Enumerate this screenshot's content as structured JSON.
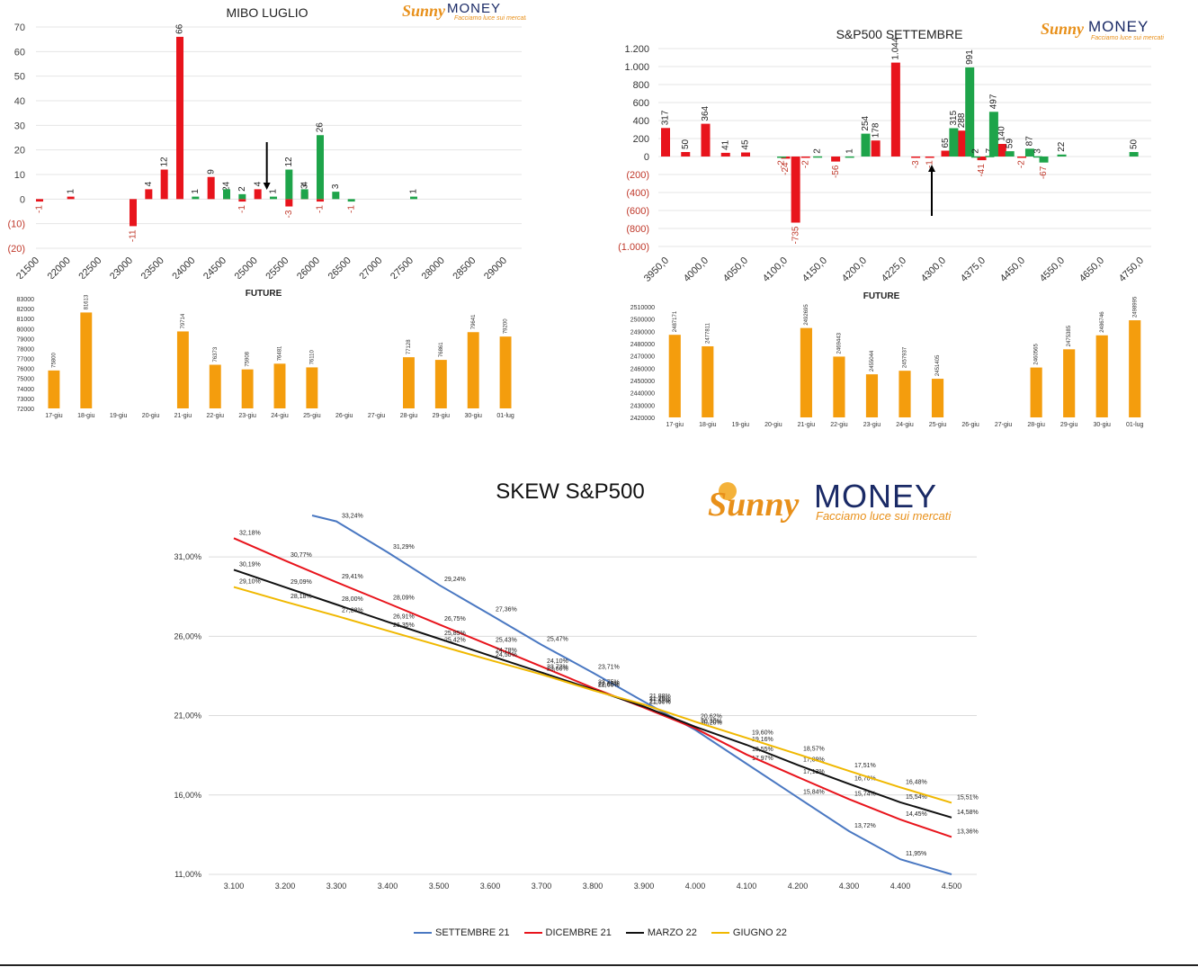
{
  "logo": {
    "sunny": "Sunny",
    "money": "MONEY",
    "tagline": "Facciamo luce sui mercati"
  },
  "chart_data": [
    {
      "id": "mibo",
      "type": "bar",
      "title": "MIBO LUGLIO",
      "categories": [
        "21500",
        "22000",
        "22500",
        "23000",
        "23500",
        "24000",
        "24500",
        "25000",
        "25500",
        "26000",
        "26500",
        "27000",
        "27500",
        "28000",
        "28500",
        "29000"
      ],
      "ylim": [
        -20,
        70
      ],
      "yticks": [
        70,
        60,
        50,
        40,
        30,
        20,
        10,
        0,
        -10,
        -20
      ],
      "ytick_labels": [
        "70",
        "60",
        "50",
        "40",
        "30",
        "20",
        "10",
        "0",
        "(10)",
        "(20)"
      ],
      "series": [
        {
          "color": "#e8141c",
          "points": [
            {
              "x": 21500,
              "y": -1,
              "label": "-1"
            },
            {
              "x": 22000,
              "y": 1,
              "label": "1"
            },
            {
              "x": 23000,
              "y": -11,
              "label": "-11"
            },
            {
              "x": 23250,
              "y": 4,
              "label": "4"
            },
            {
              "x": 23500,
              "y": 12,
              "label": "12"
            },
            {
              "x": 23750,
              "y": 66,
              "label": "66"
            },
            {
              "x": 24250,
              "y": 9,
              "label": "9"
            },
            {
              "x": 24500,
              "y": 2,
              "label": "2"
            },
            {
              "x": 24750,
              "y": -1,
              "label": "-1"
            },
            {
              "x": 25000,
              "y": 4,
              "label": "4"
            },
            {
              "x": 25500,
              "y": -3,
              "label": "-3"
            },
            {
              "x": 25750,
              "y": 3,
              "label": "3"
            },
            {
              "x": 26000,
              "y": -1,
              "label": "-1"
            }
          ]
        },
        {
          "color": "#1ea44a",
          "points": [
            {
              "x": 24000,
              "y": 1,
              "label": "1"
            },
            {
              "x": 24500,
              "y": 4,
              "label": "4"
            },
            {
              "x": 24750,
              "y": 2,
              "label": "2"
            },
            {
              "x": 25250,
              "y": 1,
              "label": "1"
            },
            {
              "x": 25500,
              "y": 12,
              "label": "12"
            },
            {
              "x": 25750,
              "y": 4,
              "label": "4"
            },
            {
              "x": 26000,
              "y": 26,
              "label": "26"
            },
            {
              "x": 26250,
              "y": 3,
              "label": "3"
            },
            {
              "x": 26500,
              "y": -1,
              "label": "-1"
            },
            {
              "x": 27500,
              "y": 1,
              "label": "1"
            }
          ]
        }
      ],
      "arrow_x": 25000
    },
    {
      "id": "mibo-future",
      "type": "bar",
      "title": "FUTURE",
      "categories": [
        "17-giu",
        "18-giu",
        "19-giu",
        "20-giu",
        "21-giu",
        "22-giu",
        "23-giu",
        "24-giu",
        "25-giu",
        "26-giu",
        "27-giu",
        "28-giu",
        "29-giu",
        "30-giu",
        "01-lug"
      ],
      "values": [
        75800,
        81613,
        null,
        null,
        79714,
        76373,
        75908,
        76481,
        76110,
        null,
        null,
        77128,
        76861,
        79641,
        79200
      ],
      "ylim": [
        72000,
        83000
      ],
      "yticks": [
        83000,
        82000,
        81000,
        80000,
        79000,
        78000,
        77000,
        76000,
        75000,
        74000,
        73000,
        72000
      ],
      "color": "#f49d0d"
    },
    {
      "id": "spx",
      "type": "bar",
      "title": "S&P500 SETTEMBRE",
      "categories": [
        "3950,0",
        "4000,0",
        "4050,0",
        "4100,0",
        "4150,0",
        "4200,0",
        "4225,0",
        "4300,0",
        "4375,0",
        "4450,0",
        "4550,0",
        "4650,0",
        "4750,0"
      ],
      "ylim": [
        -1000,
        1200
      ],
      "yticks": [
        1200,
        1000,
        800,
        600,
        400,
        200,
        0,
        -200,
        -400,
        -600,
        -800,
        -1000
      ],
      "ytick_labels": [
        "1.200",
        "1.000",
        "800",
        "600",
        "400",
        "200",
        "0",
        "(200)",
        "(400)",
        "(600)",
        "(800)",
        "(1.000)"
      ],
      "series": [
        {
          "color": "#e8141c",
          "points": [
            {
              "slot": 0,
              "y": 317,
              "label": "317"
            },
            {
              "slot": 1,
              "y": 50,
              "label": "50"
            },
            {
              "slot": 2,
              "y": 364,
              "label": "364"
            },
            {
              "slot": 3,
              "y": 41,
              "label": "41"
            },
            {
              "slot": 4,
              "y": 45,
              "label": "45"
            },
            {
              "slot": 6,
              "y": -24,
              "label": "-24"
            },
            {
              "slot": 6.5,
              "y": -735,
              "label": "-735"
            },
            {
              "slot": 7,
              "y": -2,
              "label": "-2"
            },
            {
              "slot": 8.5,
              "y": -56,
              "label": "-56"
            },
            {
              "slot": 10.5,
              "y": 178,
              "label": "178"
            },
            {
              "slot": 11.5,
              "y": 1044,
              "label": "1.044"
            },
            {
              "slot": 12.5,
              "y": -3,
              "label": "-3"
            },
            {
              "slot": 13.2,
              "y": -1,
              "label": "-1"
            },
            {
              "slot": 14,
              "y": 65,
              "label": "65"
            },
            {
              "slot": 14.8,
              "y": 288,
              "label": "288"
            },
            {
              "slot": 15.8,
              "y": -41,
              "label": "-41"
            },
            {
              "slot": 16.8,
              "y": 140,
              "label": "140"
            },
            {
              "slot": 17.8,
              "y": -2,
              "label": "-2"
            }
          ]
        },
        {
          "color": "#1ea44a",
          "points": [
            {
              "slot": 5.8,
              "y": -2,
              "label": "-2"
            },
            {
              "slot": 7.6,
              "y": 2,
              "label": "2"
            },
            {
              "slot": 9.2,
              "y": 1,
              "label": "1"
            },
            {
              "slot": 10,
              "y": 254,
              "label": "254"
            },
            {
              "slot": 14.4,
              "y": 315,
              "label": "315"
            },
            {
              "slot": 15.2,
              "y": 991,
              "label": "991"
            },
            {
              "slot": 15.5,
              "y": 2,
              "label": "2"
            },
            {
              "slot": 16.2,
              "y": 7,
              "label": "7"
            },
            {
              "slot": 16.4,
              "y": 497,
              "label": "497"
            },
            {
              "slot": 17.2,
              "y": 59,
              "label": "59"
            },
            {
              "slot": 18.2,
              "y": 87,
              "label": "87"
            },
            {
              "slot": 18.6,
              "y": 3,
              "label": "3"
            },
            {
              "slot": 18.9,
              "y": -67,
              "label": "-67"
            },
            {
              "slot": 19.8,
              "y": 22,
              "label": "22"
            },
            {
              "slot": 23.4,
              "y": 50,
              "label": "50"
            }
          ]
        }
      ]
    },
    {
      "id": "spx-future",
      "type": "bar",
      "title": "FUTURE",
      "categories": [
        "17-giu",
        "18-giu",
        "19-giu",
        "20-giu",
        "21-giu",
        "22-giu",
        "23-giu",
        "24-giu",
        "25-giu",
        "26-giu",
        "27-giu",
        "28-giu",
        "29-giu",
        "30-giu",
        "01-lug"
      ],
      "values": [
        2487171,
        2477811,
        null,
        null,
        2492695,
        2469443,
        2455044,
        2457937,
        2451405,
        null,
        null,
        2460565,
        2475385,
        2486746,
        2498995
      ],
      "ylim": [
        2420000,
        2510000
      ],
      "yticks": [
        2510000,
        2500000,
        2490000,
        2480000,
        2470000,
        2460000,
        2450000,
        2440000,
        2430000,
        2420000
      ],
      "color": "#f49d0d"
    },
    {
      "id": "skew",
      "type": "line",
      "title": "SKEW S&P500",
      "x": [
        3100,
        3200,
        3300,
        3400,
        3500,
        3600,
        3700,
        3800,
        3900,
        4000,
        4100,
        4200,
        4300,
        4400,
        4500
      ],
      "xtick_labels": [
        "3.100",
        "3.200",
        "3.300",
        "3.400",
        "3.500",
        "3.600",
        "3.700",
        "3.800",
        "3.900",
        "4.000",
        "4.100",
        "4.200",
        "4.300",
        "4.400",
        "4.500"
      ],
      "ylim": [
        11,
        33.5
      ],
      "yticks": [
        11,
        16,
        21,
        26,
        31
      ],
      "ytick_labels": [
        "11,00%",
        "16,00%",
        "21,00%",
        "26,00%",
        "31,00%"
      ],
      "series": [
        {
          "name": "SETTEMBRE 21",
          "color": "#4a78c2",
          "y": [
            null,
            null,
            33.24,
            31.29,
            29.24,
            27.36,
            25.47,
            23.71,
            21.88,
            20.1,
            17.97,
            15.84,
            13.72,
            11.95,
            11.0
          ],
          "labels": [
            "",
            "",
            "33,24%",
            "31,29%",
            "29,24%",
            "27,36%",
            "25,47%",
            "23,71%",
            "21,88%",
            "",
            "17,97%",
            "15,84%",
            "13,72%",
            "11,95%",
            ""
          ]
        },
        {
          "name": "DICEMBRE 21",
          "color": "#e8141c",
          "y": [
            32.18,
            30.77,
            29.41,
            28.09,
            26.75,
            25.43,
            24.1,
            22.75,
            21.5,
            20.2,
            18.55,
            17.13,
            15.74,
            14.45,
            13.36
          ],
          "labels": [
            "32,18%",
            "30,77%",
            "29,41%",
            "28,09%",
            "26,75%",
            "25,43%",
            "24,10%",
            "22,75%",
            "21,50%",
            "20,20%",
            "18,55%",
            "17,13%",
            "15,74%",
            "14,45%",
            "13,36%"
          ]
        },
        {
          "name": "MARZO 22",
          "color": "#111111",
          "y": [
            30.19,
            29.09,
            28.0,
            26.91,
            25.85,
            24.78,
            23.72,
            22.66,
            21.57,
            20.3,
            19.16,
            17.89,
            16.7,
            15.54,
            14.58
          ],
          "labels": [
            "30,19%",
            "29,09%",
            "28,00%",
            "26,91%",
            "25,85%",
            "24,78%",
            "23,72%",
            "22,66%",
            "21,57%",
            "20,30%",
            "19,16%",
            "17,89%",
            "16,70%",
            "15,54%",
            "14,58%"
          ]
        },
        {
          "name": "GIUGNO 22",
          "color": "#f0b800",
          "y": [
            29.1,
            28.18,
            27.28,
            26.35,
            25.42,
            24.5,
            23.6,
            22.6,
            21.7,
            20.62,
            19.6,
            18.57,
            17.51,
            16.48,
            15.51
          ],
          "labels": [
            "29,10%",
            "28,18%",
            "27,28%",
            "26,35%",
            "25,42%",
            "24,50%",
            "23,60%",
            "22,60%",
            "21,70%",
            "20,62%",
            "19,60%",
            "18,57%",
            "17,51%",
            "16,48%",
            "15,51%"
          ]
        }
      ]
    }
  ]
}
